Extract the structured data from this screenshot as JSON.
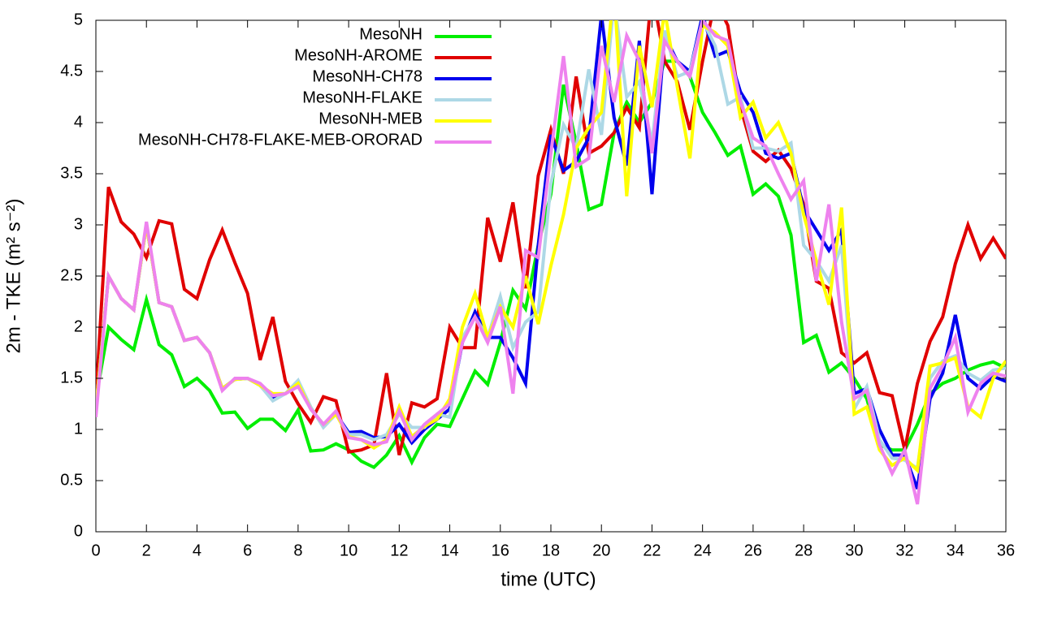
{
  "chart_data": {
    "type": "line",
    "xlabel": "time (UTC)",
    "ylabel": "2m - TKE (m² s⁻²)",
    "x": [
      0,
      0.5,
      1,
      1.5,
      2,
      2.5,
      3,
      3.5,
      4,
      4.5,
      5,
      5.5,
      6,
      6.5,
      7,
      7.5,
      8,
      8.5,
      9,
      9.5,
      10,
      10.5,
      11,
      11.5,
      12,
      12.5,
      13,
      13.5,
      14,
      14.5,
      15,
      15.5,
      16,
      16.5,
      17,
      17.5,
      18,
      18.5,
      19,
      19.5,
      20,
      20.5,
      21,
      21.5,
      22,
      22.5,
      23,
      23.5,
      24,
      24.5,
      25,
      25.5,
      26,
      26.5,
      27,
      27.5,
      28,
      28.5,
      29,
      29.5,
      30,
      30.5,
      31,
      31.5,
      32,
      32.5,
      33,
      33.5,
      34,
      34.5,
      35,
      35.5,
      36
    ],
    "xlim": [
      0,
      36
    ],
    "xticks": [
      0,
      2,
      4,
      6,
      8,
      10,
      12,
      14,
      16,
      18,
      20,
      22,
      24,
      26,
      28,
      30,
      32,
      34,
      36
    ],
    "ylim": [
      0,
      5
    ],
    "yticks": [
      0,
      0.5,
      1,
      1.5,
      2,
      2.5,
      3,
      3.5,
      4,
      4.5,
      5
    ],
    "grid": false,
    "legend": "top-left",
    "series": [
      {
        "name": "MesoNH",
        "color": "#00ee00",
        "values": [
          1.3,
          2.0,
          1.88,
          1.78,
          2.27,
          1.83,
          1.73,
          1.42,
          1.5,
          1.38,
          1.16,
          1.17,
          1.01,
          1.1,
          1.1,
          0.99,
          1.19,
          0.79,
          0.8,
          0.86,
          0.8,
          0.69,
          0.63,
          0.75,
          0.94,
          0.68,
          0.92,
          1.05,
          1.03,
          1.3,
          1.57,
          1.44,
          1.85,
          2.36,
          2.18,
          2.8,
          3.3,
          4.37,
          3.8,
          3.15,
          3.2,
          3.9,
          4.2,
          4.0,
          4.2,
          4.6,
          4.6,
          4.45,
          4.1,
          3.9,
          3.68,
          3.77,
          3.3,
          3.4,
          3.28,
          2.9,
          1.85,
          1.92,
          1.56,
          1.65,
          1.5,
          1.3,
          0.85,
          0.8,
          0.8,
          1.05,
          1.35,
          1.45,
          1.5,
          1.58,
          1.63,
          1.66,
          1.6
        ]
      },
      {
        "name": "MesoNH-AROME",
        "color": "#e00000",
        "values": [
          1.3,
          3.37,
          3.03,
          2.91,
          2.68,
          3.04,
          3.01,
          2.37,
          2.28,
          2.66,
          2.95,
          2.63,
          2.33,
          1.68,
          2.1,
          1.47,
          1.25,
          1.07,
          1.32,
          1.28,
          0.78,
          0.8,
          0.85,
          1.55,
          0.75,
          1.26,
          1.22,
          1.3,
          2.0,
          1.8,
          1.8,
          3.07,
          2.64,
          3.22,
          2.38,
          3.48,
          3.93,
          3.5,
          4.45,
          3.7,
          3.77,
          3.9,
          4.15,
          3.95,
          5.3,
          4.6,
          4.4,
          3.93,
          4.6,
          5.2,
          4.95,
          4.15,
          3.72,
          3.62,
          3.73,
          3.55,
          3.2,
          2.45,
          2.38,
          1.75,
          1.65,
          1.75,
          1.36,
          1.33,
          0.8,
          1.45,
          1.86,
          2.1,
          2.62,
          3.0,
          2.67,
          2.87,
          2.67
        ]
      },
      {
        "name": "MesoNH-CH78",
        "color": "#0000ee",
        "values": [
          1.2,
          2.5,
          2.28,
          2.17,
          3.0,
          2.24,
          2.2,
          1.87,
          1.9,
          1.75,
          1.4,
          1.49,
          1.5,
          1.43,
          1.3,
          1.35,
          1.45,
          1.2,
          1.05,
          1.15,
          0.97,
          0.98,
          0.92,
          0.93,
          1.05,
          0.87,
          1.0,
          1.1,
          1.2,
          1.85,
          2.15,
          1.9,
          1.9,
          1.7,
          1.45,
          2.8,
          3.88,
          3.53,
          3.62,
          3.85,
          5.05,
          4.05,
          3.58,
          4.8,
          3.3,
          4.85,
          4.6,
          4.5,
          5.05,
          4.65,
          4.7,
          4.3,
          4.1,
          3.7,
          3.65,
          3.7,
          3.15,
          2.95,
          2.75,
          2.95,
          1.35,
          1.4,
          1.0,
          0.75,
          0.75,
          0.42,
          1.3,
          1.55,
          2.12,
          1.5,
          1.4,
          1.52,
          1.47
        ]
      },
      {
        "name": "MesoNH-FLAKE",
        "color": "#add8e6",
        "values": [
          1.2,
          2.5,
          2.28,
          2.17,
          3.0,
          2.24,
          2.2,
          1.87,
          1.9,
          1.75,
          1.4,
          1.49,
          1.5,
          1.43,
          1.28,
          1.35,
          1.48,
          1.22,
          1.02,
          1.15,
          0.95,
          0.95,
          0.9,
          0.95,
          1.15,
          1.02,
          1.02,
          1.15,
          1.12,
          1.9,
          2.1,
          1.9,
          2.3,
          1.8,
          2.05,
          2.15,
          3.4,
          3.98,
          3.75,
          4.52,
          3.88,
          5.2,
          4.25,
          4.4,
          3.8,
          4.9,
          4.45,
          4.5,
          5.0,
          4.75,
          4.18,
          4.25,
          3.75,
          3.75,
          3.72,
          3.8,
          2.8,
          2.65,
          2.45,
          2.8,
          1.2,
          1.42,
          0.9,
          0.72,
          0.7,
          0.62,
          1.5,
          1.67,
          1.72,
          1.55,
          1.48,
          1.58,
          1.6
        ]
      },
      {
        "name": "MesoNH-MEB",
        "color": "#ffff00",
        "values": [
          1.2,
          2.5,
          2.28,
          2.17,
          3.0,
          2.24,
          2.2,
          1.87,
          1.9,
          1.75,
          1.4,
          1.49,
          1.5,
          1.43,
          1.35,
          1.35,
          1.45,
          1.2,
          1.05,
          1.15,
          0.93,
          0.9,
          0.82,
          0.9,
          1.22,
          0.93,
          1.03,
          1.1,
          1.3,
          2.0,
          2.33,
          1.9,
          2.2,
          2.0,
          2.5,
          2.03,
          2.6,
          3.1,
          3.75,
          3.95,
          4.1,
          5.3,
          3.28,
          4.75,
          4.15,
          5.1,
          4.35,
          3.65,
          4.95,
          4.88,
          4.75,
          4.05,
          4.2,
          3.85,
          4.0,
          3.7,
          3.1,
          2.65,
          2.22,
          3.17,
          1.15,
          1.22,
          0.8,
          0.65,
          0.72,
          0.6,
          1.62,
          1.65,
          1.7,
          1.22,
          1.12,
          1.5,
          1.67
        ]
      },
      {
        "name": "MesoNH-CH78-FLAKE-MEB-ORORAD",
        "color": "#ee82ee",
        "values": [
          1.12,
          2.5,
          2.28,
          2.17,
          3.03,
          2.24,
          2.2,
          1.87,
          1.9,
          1.75,
          1.38,
          1.5,
          1.5,
          1.45,
          1.33,
          1.35,
          1.42,
          1.2,
          1.05,
          1.18,
          0.92,
          0.9,
          0.85,
          0.88,
          1.18,
          0.9,
          1.05,
          1.15,
          1.25,
          1.85,
          2.1,
          1.85,
          2.2,
          1.35,
          2.75,
          2.68,
          3.7,
          4.65,
          3.57,
          3.65,
          4.75,
          4.2,
          4.85,
          4.6,
          3.7,
          4.8,
          4.6,
          4.45,
          5.0,
          4.85,
          4.8,
          4.2,
          3.85,
          3.77,
          3.5,
          3.25,
          3.43,
          2.45,
          3.2,
          2.05,
          1.3,
          1.38,
          0.85,
          0.57,
          0.8,
          0.27,
          1.4,
          1.62,
          1.9,
          1.17,
          1.45,
          1.55,
          1.52
        ]
      }
    ]
  }
}
